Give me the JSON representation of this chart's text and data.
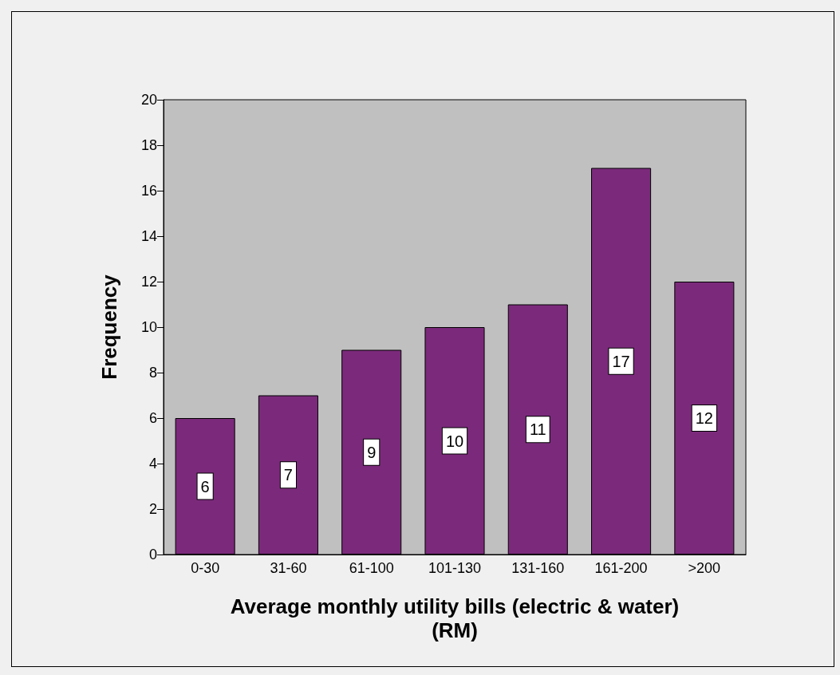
{
  "chart_data": {
    "type": "bar",
    "xlabel": "Average monthly utility bills (electric & water)\n(RM)",
    "ylabel": "Frequency",
    "categories": [
      "0-30",
      "31-60",
      "61-100",
      "101-130",
      "131-160",
      "161-200",
      ">200"
    ],
    "values": [
      6,
      7,
      9,
      10,
      11,
      17,
      12
    ],
    "color": "#7b2a7b",
    "ylim": [
      0,
      20
    ],
    "yticks": [
      0,
      2,
      4,
      6,
      8,
      10,
      12,
      14,
      16,
      18,
      20
    ],
    "grid": false,
    "data_labels": true
  }
}
